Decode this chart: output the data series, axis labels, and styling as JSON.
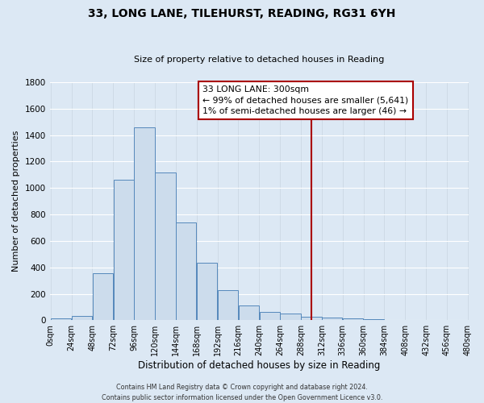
{
  "title": "33, LONG LANE, TILEHURST, READING, RG31 6YH",
  "subtitle": "Size of property relative to detached houses in Reading",
  "xlabel": "Distribution of detached houses by size in Reading",
  "ylabel": "Number of detached properties",
  "bin_starts": [
    0,
    24,
    48,
    72,
    96,
    120,
    144,
    168,
    192,
    216,
    240,
    264,
    288,
    312,
    336,
    360,
    384,
    408,
    432,
    456
  ],
  "bin_width": 24,
  "bar_values": [
    15,
    35,
    355,
    1060,
    1460,
    1120,
    740,
    435,
    225,
    110,
    60,
    50,
    25,
    20,
    15,
    8,
    5,
    3,
    2,
    1
  ],
  "bar_facecolor": "#ccdcec",
  "bar_edgecolor": "#5588bb",
  "vline_x": 300,
  "vline_color": "#aa0000",
  "ylim": [
    0,
    1800
  ],
  "yticks": [
    0,
    200,
    400,
    600,
    800,
    1000,
    1200,
    1400,
    1600,
    1800
  ],
  "xtick_labels": [
    "0sqm",
    "24sqm",
    "48sqm",
    "72sqm",
    "96sqm",
    "120sqm",
    "144sqm",
    "168sqm",
    "192sqm",
    "216sqm",
    "240sqm",
    "264sqm",
    "288sqm",
    "312sqm",
    "336sqm",
    "360sqm",
    "384sqm",
    "408sqm",
    "432sqm",
    "456sqm",
    "480sqm"
  ],
  "annotation_lines": [
    "33 LONG LANE: 300sqm",
    "← 99% of detached houses are smaller (5,641)",
    "1% of semi-detached houses are larger (46) →"
  ],
  "background_color": "#dce8f4",
  "grid_color": "#c8d4e0",
  "footer_line1": "Contains HM Land Registry data © Crown copyright and database right 2024.",
  "footer_line2": "Contains public sector information licensed under the Open Government Licence v3.0."
}
